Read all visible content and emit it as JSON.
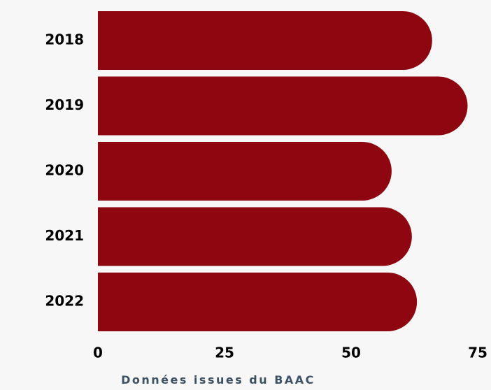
{
  "chart_data": {
    "type": "bar",
    "orientation": "horizontal",
    "categories": [
      "2018",
      "2019",
      "2020",
      "2021",
      "2022"
    ],
    "values": [
      66,
      73,
      58,
      62,
      63
    ],
    "xlim": [
      0,
      75
    ],
    "xticks": [
      "0",
      "25",
      "50",
      "75"
    ],
    "grid": false,
    "bar_style": "rounded-right-end",
    "colors": {
      "bar": "#8e0610",
      "background": "#f7f7f7",
      "text": "#000000",
      "source_text": "#3d5166"
    }
  },
  "footer": {
    "source": "Données issues du BAAC"
  }
}
